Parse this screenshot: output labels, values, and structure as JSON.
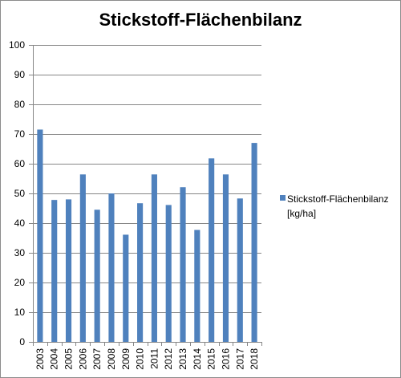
{
  "chart_data": {
    "type": "bar",
    "title": "Stickstoff-Flächenbilanz",
    "categories": [
      "2003",
      "2004",
      "2005",
      "2006",
      "2007",
      "2008",
      "2009",
      "2010",
      "2011",
      "2012",
      "2013",
      "2014",
      "2015",
      "2016",
      "2017",
      "2018"
    ],
    "series": [
      {
        "name": "Stickstoff-Flächenbilanz [kg/ha]",
        "values": [
          71.5,
          47.8,
          48.0,
          56.4,
          44.5,
          50.0,
          36.1,
          46.7,
          56.4,
          46.1,
          52.1,
          37.7,
          61.8,
          56.4,
          48.3,
          67.0
        ]
      }
    ],
    "ylim": [
      0,
      100
    ],
    "yticks": [
      0,
      10,
      20,
      30,
      40,
      50,
      60,
      70,
      80,
      90,
      100
    ],
    "grid": true,
    "legend": "right",
    "bar_color": "#4f81bd"
  },
  "legend": {
    "label_line1": "Stickstoff-Flächenbilanz",
    "label_line2": "[kg/ha]"
  }
}
